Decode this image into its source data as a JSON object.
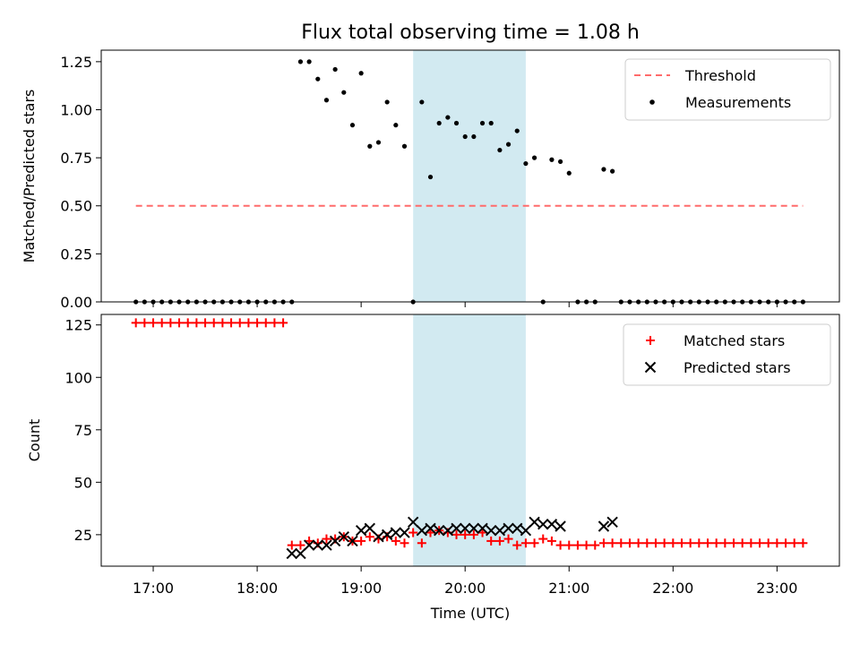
{
  "title": "Flux total observing time = 1.08 h",
  "xlabel": "Time (UTC)",
  "colors": {
    "threshold": "#ff6b6b",
    "measurement": "#000000",
    "matched": "#ff0000",
    "predicted": "#000000",
    "shade": "#add8e6"
  },
  "chart_data": [
    {
      "type": "scatter",
      "ylabel": "Matched/Predicted stars",
      "ylim": [
        0,
        1.31
      ],
      "yticks": [
        0.0,
        0.25,
        0.5,
        0.75,
        1.0,
        1.25
      ],
      "ytick_labels": [
        "0.00",
        "0.25",
        "0.50",
        "0.75",
        "1.00",
        "1.25"
      ],
      "xlim": [
        "16:30",
        "23:36"
      ],
      "shaded_span": [
        "19:30",
        "20:35"
      ],
      "legend_position": "upper-right",
      "legend": [
        "Threshold",
        "Measurements"
      ],
      "threshold": {
        "name": "Threshold",
        "value": 0.5,
        "x": [
          "16:50",
          "23:15"
        ]
      },
      "measurements": {
        "name": "Measurements",
        "x": [
          "16:50",
          "16:55",
          "17:00",
          "17:05",
          "17:10",
          "17:15",
          "17:20",
          "17:25",
          "17:30",
          "17:35",
          "17:40",
          "17:45",
          "17:50",
          "17:55",
          "18:00",
          "18:05",
          "18:10",
          "18:15",
          "18:20",
          "18:25",
          "18:30",
          "18:35",
          "18:40",
          "18:45",
          "18:50",
          "18:55",
          "19:00",
          "19:05",
          "19:10",
          "19:15",
          "19:20",
          "19:25",
          "19:30",
          "19:35",
          "19:40",
          "19:45",
          "19:50",
          "19:55",
          "20:00",
          "20:05",
          "20:10",
          "20:15",
          "20:20",
          "20:25",
          "20:30",
          "20:35",
          "20:40",
          "20:45",
          "20:50",
          "20:55",
          "21:00",
          "21:05",
          "21:10",
          "21:15",
          "21:20",
          "21:25",
          "21:30",
          "21:35",
          "21:40",
          "21:45",
          "21:50",
          "21:55",
          "22:00",
          "22:05",
          "22:10",
          "22:15",
          "22:20",
          "22:25",
          "22:30",
          "22:35",
          "22:40",
          "22:45",
          "22:50",
          "22:55",
          "23:00",
          "23:05",
          "23:10",
          "23:15"
        ],
        "y": [
          0,
          0,
          0,
          0,
          0,
          0,
          0,
          0,
          0,
          0,
          0,
          0,
          0,
          0,
          0,
          0,
          0,
          0,
          0,
          1.25,
          1.25,
          1.16,
          1.05,
          1.21,
          1.09,
          0.92,
          1.19,
          0.81,
          0.83,
          1.04,
          0.92,
          0.81,
          0,
          1.04,
          0.65,
          0.93,
          0.96,
          0.93,
          0.86,
          0.86,
          0.93,
          0.93,
          0.79,
          0.82,
          0.89,
          0.72,
          0.75,
          0,
          0.74,
          0.73,
          0.67,
          0,
          0,
          0,
          0.69,
          0.68,
          0,
          0,
          0,
          0,
          0,
          0,
          0,
          0,
          0,
          0,
          0,
          0,
          0,
          0,
          0,
          0,
          0,
          0,
          0,
          0,
          0,
          0
        ]
      }
    },
    {
      "type": "scatter",
      "ylabel": "Count",
      "ylim": [
        10,
        130
      ],
      "yticks": [
        25,
        50,
        75,
        100,
        125
      ],
      "ytick_labels": [
        "25",
        "50",
        "75",
        "100",
        "125"
      ],
      "xlim": [
        "16:30",
        "23:36"
      ],
      "xticks": [
        "17:00",
        "18:00",
        "19:00",
        "20:00",
        "21:00",
        "22:00",
        "23:00"
      ],
      "shaded_span": [
        "19:30",
        "20:35"
      ],
      "legend_position": "upper-right",
      "legend": [
        "Matched stars",
        "Predicted stars"
      ],
      "series": [
        {
          "name": "Matched stars",
          "marker": "+",
          "x": [
            "16:50",
            "16:55",
            "17:00",
            "17:05",
            "17:10",
            "17:15",
            "17:20",
            "17:25",
            "17:30",
            "17:35",
            "17:40",
            "17:45",
            "17:50",
            "17:55",
            "18:00",
            "18:05",
            "18:10",
            "18:15",
            "18:20",
            "18:25",
            "18:30",
            "18:35",
            "18:40",
            "18:45",
            "18:50",
            "18:55",
            "19:00",
            "19:05",
            "19:10",
            "19:15",
            "19:20",
            "19:25",
            "19:30",
            "19:35",
            "19:40",
            "19:45",
            "19:50",
            "19:55",
            "20:00",
            "20:05",
            "20:10",
            "20:15",
            "20:20",
            "20:25",
            "20:30",
            "20:35",
            "20:40",
            "20:45",
            "20:50",
            "20:55",
            "21:00",
            "21:05",
            "21:10",
            "21:15",
            "21:20",
            "21:25",
            "21:30",
            "21:35",
            "21:40",
            "21:45",
            "21:50",
            "21:55",
            "22:00",
            "22:05",
            "22:10",
            "22:15",
            "22:20",
            "22:25",
            "22:30",
            "22:35",
            "22:40",
            "22:45",
            "22:50",
            "22:55",
            "23:00",
            "23:05",
            "23:10",
            "23:15"
          ],
          "y": [
            126,
            126,
            126,
            126,
            126,
            126,
            126,
            126,
            126,
            126,
            126,
            126,
            126,
            126,
            126,
            126,
            126,
            126,
            20,
            20,
            22,
            21,
            23,
            23,
            24,
            22,
            22,
            24,
            23,
            24,
            22,
            21,
            26,
            21,
            26,
            27,
            26,
            25,
            25,
            25,
            26,
            22,
            22,
            23,
            20,
            21,
            21,
            23,
            22,
            20,
            20,
            20,
            20,
            20,
            21,
            21,
            21,
            21,
            21,
            21,
            21,
            21,
            21,
            21,
            21,
            21,
            21,
            21,
            21,
            21,
            21,
            21,
            21,
            21,
            21,
            21,
            21,
            21
          ]
        },
        {
          "name": "Predicted stars",
          "marker": "x",
          "x": [
            "18:20",
            "18:25",
            "18:30",
            "18:35",
            "18:40",
            "18:45",
            "18:50",
            "18:55",
            "19:00",
            "19:05",
            "19:10",
            "19:15",
            "19:20",
            "19:25",
            "19:30",
            "19:35",
            "19:40",
            "19:45",
            "19:50",
            "19:55",
            "20:00",
            "20:05",
            "20:10",
            "20:15",
            "20:20",
            "20:25",
            "20:30",
            "20:35",
            "20:40",
            "20:45",
            "20:50",
            "20:55",
            "21:00",
            "21:05",
            "21:10",
            "21:15",
            "21:20",
            "21:25"
          ],
          "y": [
            16,
            16,
            20,
            20,
            20,
            22,
            24,
            22,
            27,
            28,
            24,
            25,
            26,
            26,
            31,
            27,
            28,
            27,
            27,
            28,
            28,
            28,
            28,
            27,
            27,
            28,
            28,
            27,
            31,
            30,
            30,
            29,
            null,
            null,
            null,
            null,
            29,
            31
          ]
        }
      ]
    }
  ]
}
